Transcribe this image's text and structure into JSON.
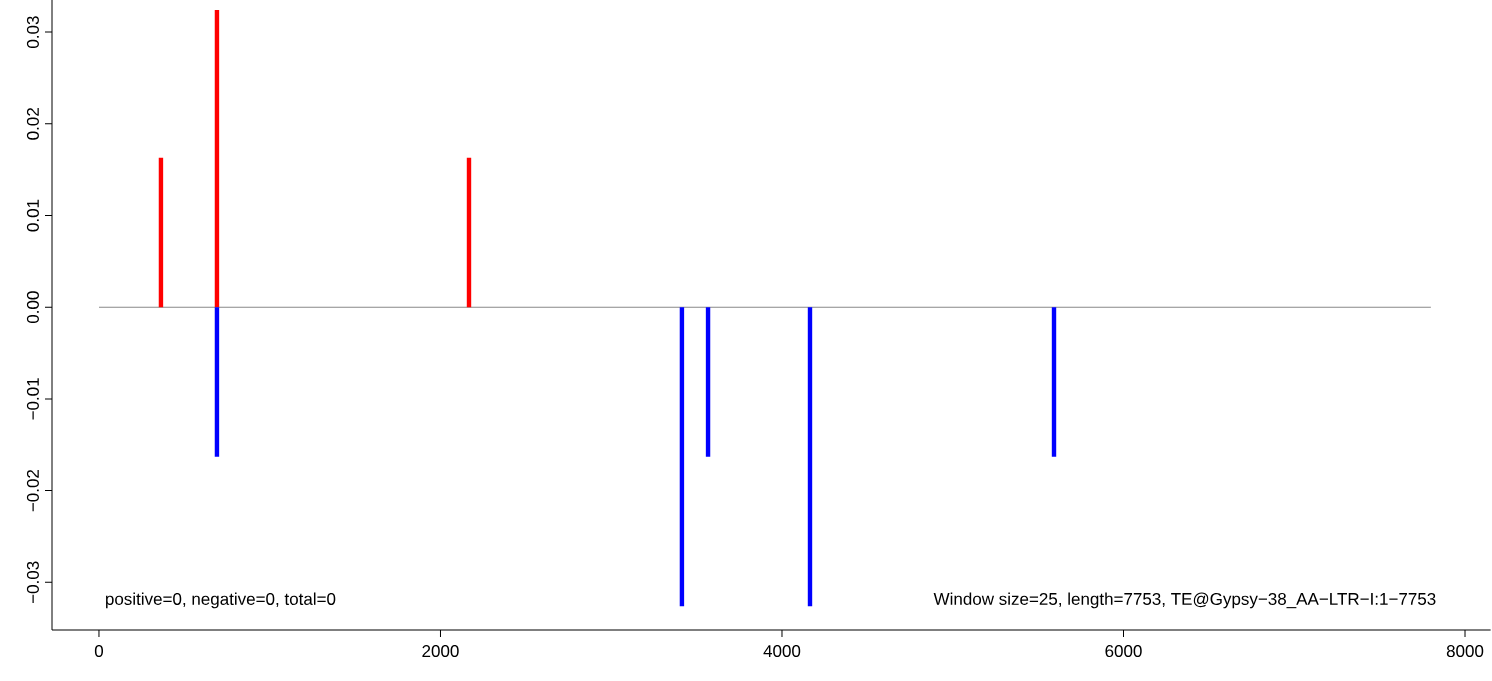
{
  "chart_data": {
    "type": "bar",
    "xlim": [
      -275,
      8150
    ],
    "ylim": [
      -0.0352,
      0.0335
    ],
    "xticks": [
      0,
      2000,
      4000,
      6000,
      8000
    ],
    "yticks": [
      {
        "value": -0.03,
        "label": "−0.03"
      },
      {
        "value": -0.02,
        "label": "−0.02"
      },
      {
        "value": -0.01,
        "label": "−0.01"
      },
      {
        "value": 0,
        "label": "0.00"
      },
      {
        "value": 0.01,
        "label": "0.01"
      },
      {
        "value": 0.02,
        "label": "0.02"
      },
      {
        "value": 0.03,
        "label": "0.03"
      }
    ],
    "series": [
      {
        "color": "#ff0000",
        "x": [
          363,
          691,
          2167
        ],
        "values": [
          0.0163,
          0.0324,
          0.0163
        ]
      },
      {
        "color": "#0000ff",
        "x": [
          691,
          3414,
          3567,
          4164,
          5593
        ],
        "values": [
          -0.0163,
          -0.0326,
          -0.0163,
          -0.0326,
          -0.0163
        ]
      }
    ],
    "ref_lines": [
      {
        "axis": "y",
        "value": 0,
        "color": "#888888"
      }
    ],
    "annotations": [
      "positive=0, negative=0, total=0",
      "Window size=25, length=7753, TE@Gypsy−38_AA−LTR−I:1−7753"
    ]
  }
}
